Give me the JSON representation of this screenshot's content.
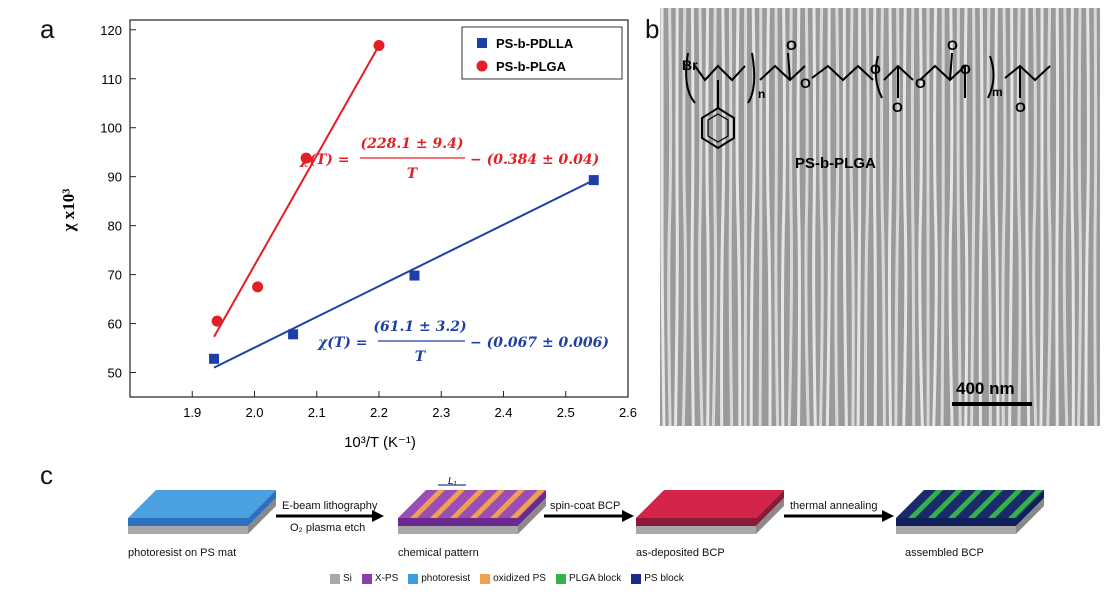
{
  "panels": {
    "a": "a",
    "b": "b",
    "c": "c"
  },
  "chart_data": {
    "type": "scatter",
    "xlabel": "10³/T (K⁻¹)",
    "ylabel": "χ x10³",
    "xlim": [
      1.8,
      2.6
    ],
    "ylim": [
      45,
      122
    ],
    "xticks": [
      "1.9",
      "2.0",
      "2.1",
      "2.2",
      "2.3",
      "2.4",
      "2.5",
      "2.6"
    ],
    "xtick_values": [
      1.9,
      2.0,
      2.1,
      2.2,
      2.3,
      2.4,
      2.5,
      2.6
    ],
    "yticks": [
      "50",
      "60",
      "70",
      "80",
      "90",
      "100",
      "110",
      "120"
    ],
    "ytick_values": [
      50,
      60,
      70,
      80,
      90,
      100,
      110,
      120
    ],
    "legend_position": "top-right",
    "series": [
      {
        "name": "PS-b-PDLLA",
        "marker": "square",
        "color": "#1f3fa8",
        "x": [
          1.935,
          2.062,
          2.257,
          2.545
        ],
        "y": [
          52.8,
          57.8,
          69.8,
          89.3
        ],
        "fit": {
          "x": [
            1.935,
            2.545
          ],
          "y": [
            51.0,
            89.3
          ]
        }
      },
      {
        "name": "PS-b-PLGA",
        "marker": "circle",
        "color": "#e31e24",
        "x": [
          1.94,
          2.005,
          2.083,
          2.2
        ],
        "y": [
          60.5,
          67.5,
          93.8,
          116.8
        ],
        "fit": {
          "x": [
            1.935,
            2.2
          ],
          "y": [
            57.3,
            116.8
          ]
        }
      }
    ],
    "annotations": [
      {
        "lhs": "χ(T) =",
        "numerator": "(228.1 ± 9.4)",
        "denominator": "T",
        "rhs": "− (0.384 ± 0.04)",
        "color": "#e31e24"
      },
      {
        "lhs": "χ(T) =",
        "numerator": "(61.1 ± 3.2)",
        "denominator": "T",
        "rhs": "− (0.067 ± 0.006)",
        "color": "#1f3fa8"
      }
    ]
  },
  "sem": {
    "polymer_label": "PS-b-PLGA",
    "scale_bar": "400 nm",
    "atom_br": "Br",
    "sub_n": "n",
    "sub_m": "m",
    "atom_o": "O"
  },
  "schematic": {
    "steps": [
      {
        "caption": "photoresist on PS mat",
        "top": "#4aa0e0",
        "mid": "#2f6fc0"
      },
      {
        "caption": "chemical pattern",
        "top": "#9b4fb5",
        "mid": "#6a2a90",
        "stripe": "#f0a050"
      },
      {
        "caption": "as-deposited BCP",
        "top": "#d4244a",
        "mid": "#8a1a3a"
      },
      {
        "caption": "assembled BCP",
        "top": "#1a2a6a",
        "mid": "#10205a",
        "stripe": "#2fb34a"
      }
    ],
    "arrows": [
      {
        "top": "E-beam lithography",
        "bottom": "O₂ plasma etch"
      },
      {
        "top": "spin-coat BCP",
        "bottom": ""
      },
      {
        "top": "thermal annealing",
        "bottom": ""
      }
    ],
    "period_label": "L₁",
    "key": [
      {
        "label": "Si",
        "color": "#a8a8a8"
      },
      {
        "label": "X-PS",
        "color": "#8a3fb0"
      },
      {
        "label": "photoresist",
        "color": "#3a9ee0"
      },
      {
        "label": "oxidized PS",
        "color": "#f0a050"
      },
      {
        "label": "PLGA block",
        "color": "#2fb34a"
      },
      {
        "label": "PS block",
        "color": "#1a2a8a"
      }
    ]
  }
}
